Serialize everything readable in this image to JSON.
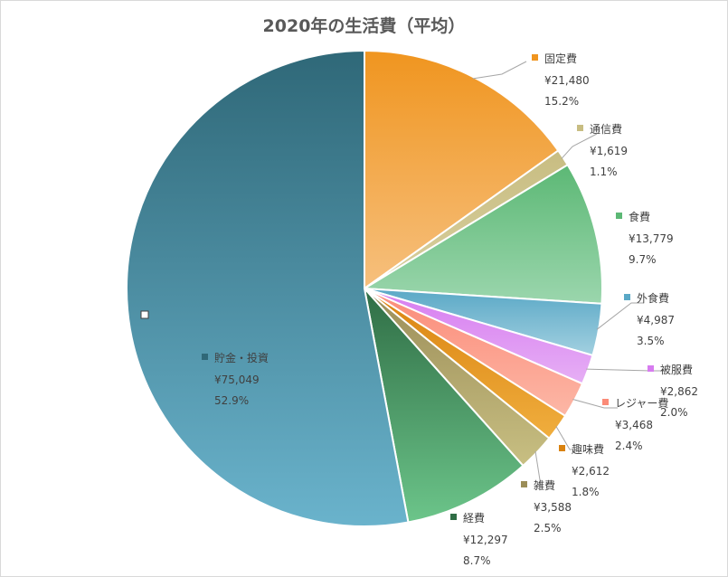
{
  "chart_data": {
    "type": "pie",
    "title": "2020年の生活費（平均）",
    "currency_symbol": "¥",
    "start_angle_deg": 0,
    "direction": "clockwise",
    "slices": [
      {
        "label": "固定費",
        "value": 21480,
        "value_text": "¥21,480",
        "percent_text": "15.2%",
        "color": "#f0951f",
        "color_light": "#f6c07e"
      },
      {
        "label": "通信費",
        "value": 1619,
        "value_text": "¥1,619",
        "percent_text": "1.1%",
        "color": "#c8bd82",
        "color_light": "#d8cf9e"
      },
      {
        "label": "食費",
        "value": 13779,
        "value_text": "¥13,779",
        "percent_text": "9.7%",
        "color": "#5cb875",
        "color_light": "#9bd6ad"
      },
      {
        "label": "外食費",
        "value": 4987,
        "value_text": "¥4,987",
        "percent_text": "3.5%",
        "color": "#5aa8c6",
        "color_light": "#a2d0e0"
      },
      {
        "label": "被服費",
        "value": 2862,
        "value_text": "¥2,862",
        "percent_text": "2.0%",
        "color": "#d77cf0",
        "color_light": "#e6aff5"
      },
      {
        "label": "レジャー費",
        "value": 3468,
        "value_text": "¥3,468",
        "percent_text": "2.4%",
        "color": "#fb8b78",
        "color_light": "#fcb7a6"
      },
      {
        "label": "趣味費",
        "value": 2612,
        "value_text": "¥2,612",
        "percent_text": "1.8%",
        "color": "#d9820f",
        "color_light": "#f0ae3e"
      },
      {
        "label": "雑費",
        "value": 3588,
        "value_text": "¥3,588",
        "percent_text": "2.5%",
        "color": "#9b8d58",
        "color_light": "#c8bf82"
      },
      {
        "label": "経費",
        "value": 12297,
        "value_text": "¥12,297",
        "percent_text": "8.7%",
        "color": "#2f6d45",
        "color_light": "#6cc58a"
      },
      {
        "label": "貯金・投資",
        "value": 75049,
        "value_text": "¥75,049",
        "percent_text": "52.9%",
        "color": "#2f6878",
        "color_light": "#6ab3cc"
      }
    ]
  }
}
